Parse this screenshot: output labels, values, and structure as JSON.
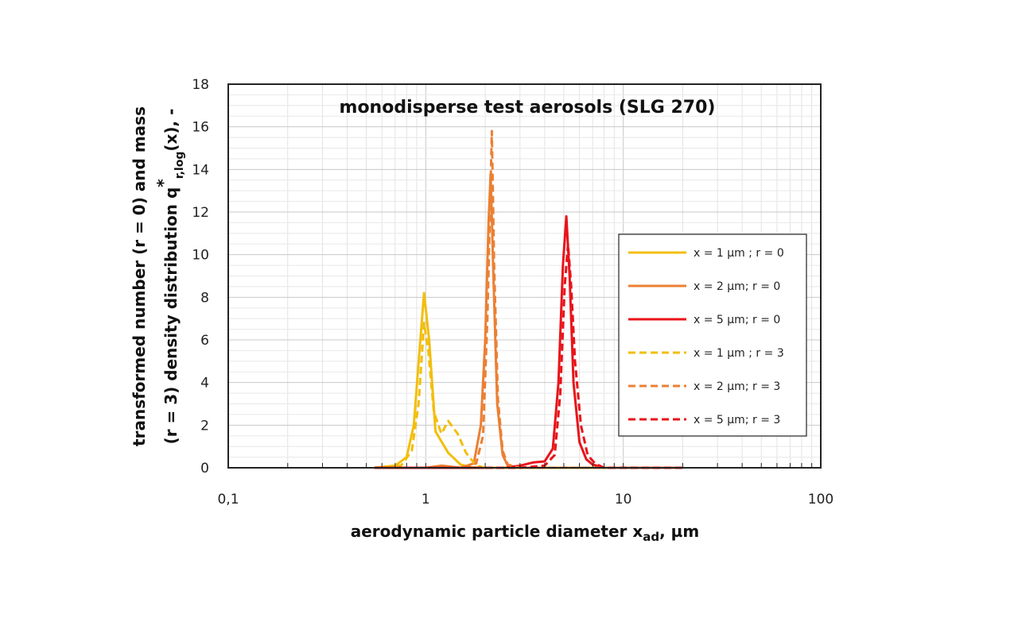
{
  "chart_data": {
    "type": "line",
    "title": "monodisperse test aerosols (SLG 270)",
    "xlabel": {
      "main": "aerodynamic particle diameter x",
      "sub": "ad",
      "tail": ", µm"
    },
    "ylabel": {
      "line1": "transformed number (r = 0) and mass",
      "line2_pre": "(r = 3) density distribution q",
      "line2_sup": "*",
      "line2_sub": "r,log",
      "line2_post": "(x), -"
    },
    "x_scale": "log",
    "xlim": [
      0.1,
      100
    ],
    "ylim": [
      0,
      18
    ],
    "x_ticks": [
      0.1,
      1,
      10,
      100
    ],
    "x_tick_labels": [
      "0,1",
      "1",
      "10",
      "100"
    ],
    "y_ticks": [
      0,
      2,
      4,
      6,
      8,
      10,
      12,
      14,
      16,
      18
    ],
    "y_tick_labels": [
      "0",
      "2",
      "4",
      "6",
      "8",
      "10",
      "12",
      "14",
      "16",
      "18"
    ],
    "grid": true,
    "legend_position": "right",
    "series": [
      {
        "name": "x = 1 µm ; r = 0",
        "color": "#F2BE0C",
        "dash": "solid",
        "x": [
          0.55,
          0.7,
          0.8,
          0.87,
          0.93,
          0.98,
          1.04,
          1.12,
          1.3,
          1.5,
          1.7,
          2.0,
          20
        ],
        "y": [
          0,
          0.1,
          0.5,
          2.0,
          5.5,
          8.2,
          6.0,
          1.7,
          0.7,
          0.15,
          0.02,
          0,
          0
        ]
      },
      {
        "name": "x = 2 µm; r = 0",
        "color": "#EB8033",
        "dash": "solid",
        "x": [
          0.55,
          1.0,
          1.2,
          1.5,
          1.75,
          1.9,
          2.0,
          2.08,
          2.13,
          2.2,
          2.3,
          2.45,
          2.6,
          3.0,
          20
        ],
        "y": [
          0,
          0,
          0.1,
          0,
          0.2,
          2.0,
          6.0,
          11.5,
          13.8,
          9.0,
          3.0,
          0.6,
          0.1,
          0,
          0
        ]
      },
      {
        "name": "x = 5 µm; r = 0",
        "color": "#E8141A",
        "dash": "solid",
        "x": [
          0.55,
          2.5,
          3.0,
          3.5,
          4.0,
          4.4,
          4.7,
          4.95,
          5.15,
          5.35,
          5.6,
          6.0,
          6.5,
          7.0,
          8.0,
          20
        ],
        "y": [
          0,
          0,
          0.1,
          0.25,
          0.3,
          0.9,
          4.0,
          9.5,
          11.8,
          9.0,
          4.0,
          1.2,
          0.4,
          0.15,
          0,
          0
        ]
      },
      {
        "name": "x = 1 µm ; r = 3",
        "color": "#F2BE0C",
        "dash": "dashed",
        "x": [
          0.55,
          0.75,
          0.85,
          0.92,
          0.98,
          1.03,
          1.1,
          1.2,
          1.3,
          1.45,
          1.6,
          1.8,
          2.0,
          20
        ],
        "y": [
          0,
          0.1,
          0.8,
          3.0,
          6.8,
          5.5,
          2.6,
          1.6,
          2.2,
          1.6,
          0.7,
          0.1,
          0,
          0
        ]
      },
      {
        "name": "x = 2 µm; r = 3",
        "color": "#EB8033",
        "dash": "dashed",
        "x": [
          0.55,
          1.5,
          1.8,
          1.95,
          2.05,
          2.12,
          2.16,
          2.22,
          2.32,
          2.45,
          2.6,
          3.0,
          20
        ],
        "y": [
          0,
          0,
          0.2,
          1.5,
          7.0,
          12.5,
          15.8,
          9.5,
          3.2,
          0.8,
          0.15,
          0,
          0
        ]
      },
      {
        "name": "x = 5 µm; r = 3",
        "color": "#E8141A",
        "dash": "dashed",
        "x": [
          0.55,
          3.0,
          4.0,
          4.5,
          4.8,
          5.05,
          5.25,
          5.45,
          5.7,
          6.1,
          6.6,
          7.2,
          8.0,
          20
        ],
        "y": [
          0,
          0,
          0.1,
          0.6,
          3.5,
          8.5,
          10.5,
          8.5,
          5.0,
          2.0,
          0.6,
          0.2,
          0,
          0
        ]
      }
    ]
  }
}
